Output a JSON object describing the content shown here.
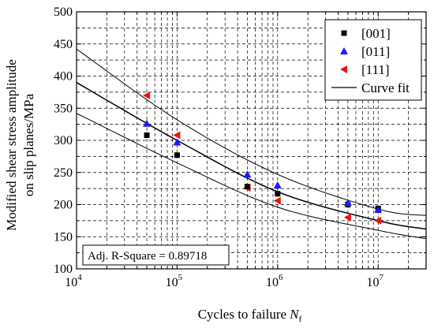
{
  "chart_data": {
    "type": "scatter",
    "xlabel": "Cycles to failure",
    "xlabel_var": "N",
    "xlabel_sub": "f",
    "ylabel_line1": "Modified shear stress amplitude",
    "ylabel_line2": "on slip planes/MPa",
    "x_scale": "log",
    "xlim": [
      10000,
      30000000
    ],
    "ylim": [
      100,
      500
    ],
    "x_ticks": [
      {
        "base": "10",
        "exp": "4",
        "value": 10000
      },
      {
        "base": "10",
        "exp": "5",
        "value": 100000
      },
      {
        "base": "10",
        "exp": "6",
        "value": 1000000
      },
      {
        "base": "10",
        "exp": "7",
        "value": 10000000
      }
    ],
    "y_ticks": [
      "100",
      "150",
      "200",
      "250",
      "300",
      "350",
      "400",
      "450",
      "500"
    ],
    "grid": true,
    "legend_position": "top-right",
    "series": [
      {
        "name": "[001]",
        "marker": "square",
        "color": "#000000",
        "points": [
          [
            50000,
            308
          ],
          [
            100000,
            277
          ],
          [
            500000,
            228
          ],
          [
            1000000,
            217
          ],
          [
            5000000,
            200
          ],
          [
            10000000,
            194
          ]
        ]
      },
      {
        "name": "[011]",
        "marker": "triangle-up",
        "color": "#1a1aff",
        "points": [
          [
            50000,
            326
          ],
          [
            100000,
            297
          ],
          [
            500000,
            247
          ],
          [
            1000000,
            230
          ],
          [
            5000000,
            203
          ],
          [
            10000000,
            192
          ]
        ]
      },
      {
        "name": "[111]",
        "marker": "triangle-left",
        "color": "#ee1111",
        "points": [
          [
            50000,
            370
          ],
          [
            100000,
            308
          ],
          [
            500000,
            226
          ],
          [
            1000000,
            206
          ],
          [
            5000000,
            180
          ],
          [
            10000000,
            175
          ]
        ]
      }
    ],
    "fit_curves": [
      {
        "name": "Curve fit",
        "points": [
          [
            10000,
            390
          ],
          [
            100000,
            300
          ],
          [
            1000000,
            220
          ],
          [
            10000000,
            175
          ],
          [
            30000000,
            162
          ]
        ]
      },
      {
        "points": [
          [
            10000,
            442
          ],
          [
            100000,
            332
          ],
          [
            1000000,
            247
          ],
          [
            10000000,
            193
          ],
          [
            30000000,
            183
          ]
        ]
      },
      {
        "points": [
          [
            10000,
            342
          ],
          [
            100000,
            265
          ],
          [
            1000000,
            196
          ],
          [
            10000000,
            160
          ],
          [
            30000000,
            147
          ]
        ]
      }
    ],
    "annotation": "Adj. R-Square = 0.89718"
  }
}
